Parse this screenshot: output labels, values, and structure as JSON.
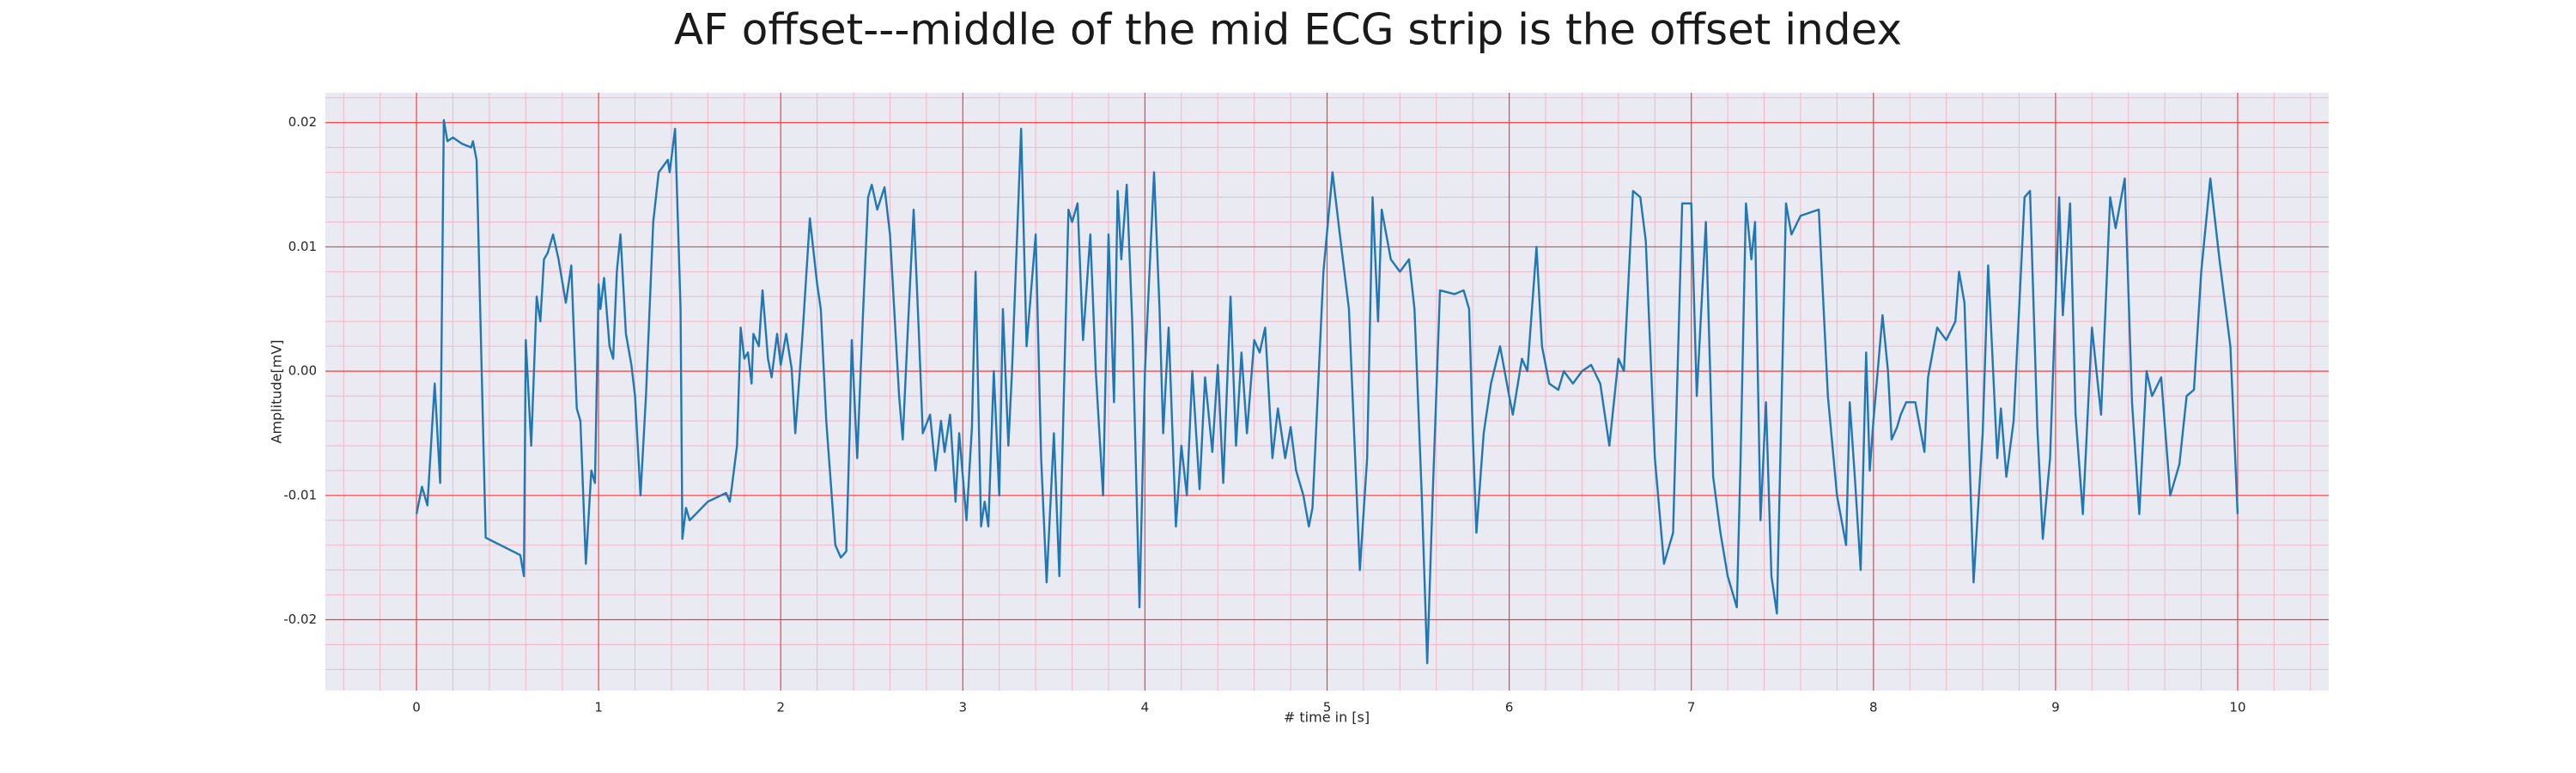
{
  "chart_data": {
    "type": "line",
    "title": "AF offset---middle of the mid ECG strip is the offset index",
    "xlabel": "# time in [s]",
    "ylabel": "Amplitude[mV]",
    "xlim": [
      -0.5,
      10.5
    ],
    "xticks": [
      0,
      1,
      2,
      3,
      4,
      5,
      6,
      7,
      8,
      9,
      10
    ],
    "ylim": [
      -0.0257,
      0.0224
    ],
    "yticks": [
      -0.02,
      -0.01,
      {
        "value": 0,
        "label": "0.00"
      },
      0.01,
      0.02
    ],
    "grid": true,
    "minor_grid": true,
    "grid_color": "#ff3b3b",
    "minor_grid_color": "#f4b6c6",
    "background": "#eaeaf2",
    "color": "#1f77b4",
    "x": [
      0,
      0.03,
      0.06,
      0.1,
      0.13,
      0.15,
      0.17,
      0.2,
      0.25,
      0.3,
      0.31,
      0.33,
      0.38,
      0.57,
      0.59,
      0.6,
      0.63,
      0.66,
      0.68,
      0.7,
      0.72,
      0.75,
      0.78,
      0.82,
      0.85,
      0.88,
      0.9,
      0.93,
      0.96,
      0.98,
      1.0,
      1.01,
      1.03,
      1.06,
      1.08,
      1.1,
      1.12,
      1.15,
      1.18,
      1.2,
      1.23,
      1.26,
      1.3,
      1.33,
      1.38,
      1.39,
      1.42,
      1.45,
      1.46,
      1.48,
      1.5,
      1.6,
      1.7,
      1.72,
      1.73,
      1.76,
      1.78,
      1.8,
      1.82,
      1.84,
      1.85,
      1.88,
      1.9,
      1.93,
      1.95,
      1.98,
      2.0,
      2.03,
      2.06,
      2.08,
      2.12,
      2.16,
      2.2,
      2.22,
      2.25,
      2.3,
      2.33,
      2.36,
      2.38,
      2.39,
      2.42,
      2.45,
      2.48,
      2.5,
      2.53,
      2.57,
      2.6,
      2.65,
      2.67,
      2.7,
      2.73,
      2.76,
      2.78,
      2.82,
      2.85,
      2.88,
      2.9,
      2.93,
      2.96,
      2.98,
      3.02,
      3.05,
      3.07,
      3.1,
      3.12,
      3.14,
      3.17,
      3.2,
      3.22,
      3.25,
      3.27,
      3.32,
      3.35,
      3.4,
      3.43,
      3.46,
      3.5,
      3.53,
      3.58,
      3.6,
      3.63,
      3.66,
      3.7,
      3.73,
      3.77,
      3.8,
      3.83,
      3.85,
      3.87,
      3.9,
      3.93,
      3.97,
      4.0,
      4.05,
      4.08,
      4.1,
      4.13,
      4.17,
      4.2,
      4.23,
      4.26,
      4.3,
      4.33,
      4.37,
      4.4,
      4.43,
      4.47,
      4.5,
      4.53,
      4.56,
      4.6,
      4.63,
      4.66,
      4.7,
      4.73,
      4.77,
      4.8,
      4.83,
      4.87,
      4.9,
      4.92,
      4.98,
      5.03,
      5.07,
      5.12,
      5.18,
      5.22,
      5.25,
      5.28,
      5.3,
      5.35,
      5.4,
      5.45,
      5.48,
      5.52,
      5.55,
      5.58,
      5.62,
      5.7,
      5.75,
      5.78,
      5.8,
      5.82,
      5.86,
      5.9,
      5.95,
      6.0,
      6.02,
      6.07,
      6.1,
      6.15,
      6.18,
      6.22,
      6.27,
      6.3,
      6.35,
      6.4,
      6.45,
      6.5,
      6.55,
      6.6,
      6.63,
      6.68,
      6.72,
      6.75,
      6.8,
      6.85,
      6.9,
      6.95,
      7.0,
      7.03,
      7.08,
      7.12,
      7.16,
      7.2,
      7.25,
      7.27,
      7.3,
      7.33,
      7.35,
      7.38,
      7.41,
      7.44,
      7.47,
      7.52,
      7.55,
      7.6,
      7.7,
      7.75,
      7.8,
      7.85,
      7.87,
      7.9,
      7.93,
      7.96,
      7.98,
      8.0,
      8.05,
      8.08,
      8.1,
      8.13,
      8.15,
      8.18,
      8.23,
      8.28,
      8.3,
      8.35,
      8.4,
      8.45,
      8.47,
      8.5,
      8.55,
      8.6,
      8.63,
      8.68,
      8.7,
      8.73,
      8.77,
      8.83,
      8.86,
      8.9,
      8.93,
      8.97,
      9.02,
      9.04,
      9.08,
      9.11,
      9.15,
      9.2,
      9.25,
      9.3,
      9.33,
      9.38,
      9.42,
      9.46,
      9.5,
      9.53,
      9.58,
      9.63,
      9.68,
      9.72,
      9.76,
      9.8,
      9.85,
      9.9,
      9.96,
      10.0
    ],
    "values": [
      -0.0115,
      -0.0093,
      -0.0108,
      -0.001,
      -0.009,
      0.0202,
      0.0185,
      0.0188,
      0.0183,
      0.018,
      0.0185,
      0.017,
      -0.0134,
      -0.0148,
      -0.0165,
      0.0025,
      -0.006,
      0.006,
      0.004,
      0.009,
      0.0095,
      0.011,
      0.009,
      0.0055,
      0.0085,
      -0.003,
      -0.004,
      -0.0155,
      -0.008,
      -0.009,
      0.007,
      0.005,
      0.0075,
      0.002,
      0.001,
      0.008,
      0.011,
      0.003,
      0.0005,
      -0.002,
      -0.01,
      -0.002,
      0.012,
      0.016,
      0.017,
      0.016,
      0.0195,
      0.005,
      -0.0135,
      -0.011,
      -0.012,
      -0.0105,
      -0.0098,
      -0.0105,
      -0.0095,
      -0.006,
      0.0035,
      0.001,
      0.0015,
      -0.001,
      0.003,
      0.002,
      0.0065,
      0.001,
      -0.0005,
      0.003,
      0.0005,
      0.003,
      0.0002,
      -0.005,
      0.003,
      0.0123,
      0.007,
      0.005,
      -0.004,
      -0.014,
      -0.015,
      -0.0145,
      -0.004,
      0.0025,
      -0.007,
      0.004,
      0.014,
      0.015,
      0.013,
      0.0148,
      0.011,
      -0.002,
      -0.0055,
      0.004,
      0.013,
      0.0025,
      -0.005,
      -0.0035,
      -0.008,
      -0.004,
      -0.0065,
      -0.0035,
      -0.0105,
      -0.005,
      -0.012,
      -0.0045,
      0.008,
      -0.0125,
      -0.0105,
      -0.0125,
      0.0,
      -0.01,
      0.005,
      -0.006,
      0.0,
      0.0195,
      0.002,
      0.011,
      -0.007,
      -0.017,
      -0.005,
      -0.0165,
      0.013,
      0.012,
      0.0135,
      0.0025,
      0.011,
      0.0,
      -0.01,
      0.011,
      -0.0025,
      0.0145,
      0.009,
      0.015,
      0.004,
      -0.019,
      0.0,
      0.016,
      0.005,
      -0.005,
      0.0035,
      -0.0125,
      -0.006,
      -0.01,
      0.0,
      -0.0095,
      -0.0005,
      -0.0065,
      0.0005,
      -0.009,
      0.006,
      -0.006,
      0.0015,
      -0.005,
      0.0025,
      0.0015,
      0.0035,
      -0.007,
      -0.003,
      -0.007,
      -0.0045,
      -0.008,
      -0.01,
      -0.0125,
      -0.011,
      0.008,
      0.016,
      0.011,
      0.005,
      -0.016,
      -0.007,
      0.014,
      0.004,
      0.013,
      0.009,
      0.008,
      0.009,
      0.005,
      -0.01,
      -0.0235,
      -0.01,
      0.0065,
      0.0062,
      0.0065,
      0.005,
      -0.005,
      -0.013,
      -0.005,
      -0.001,
      0.002,
      -0.002,
      -0.0035,
      0.001,
      0.0,
      0.01,
      0.002,
      -0.001,
      -0.0015,
      0.0,
      -0.001,
      0.0,
      0.0005,
      -0.001,
      -0.006,
      0.001,
      0.0,
      0.0145,
      0.014,
      0.0105,
      -0.007,
      -0.0155,
      -0.013,
      0.0135,
      0.0135,
      -0.002,
      0.012,
      -0.0085,
      -0.013,
      -0.0165,
      -0.019,
      -0.0075,
      0.0135,
      0.009,
      0.012,
      -0.012,
      -0.0025,
      -0.0165,
      -0.0195,
      0.0135,
      0.011,
      0.0125,
      0.013,
      -0.002,
      -0.01,
      -0.014,
      -0.0025,
      -0.009,
      -0.016,
      0.0015,
      -0.008,
      -0.004,
      0.0045,
      0.0,
      -0.0055,
      -0.0045,
      -0.0035,
      -0.0025,
      -0.0025,
      -0.0065,
      -0.0005,
      0.0035,
      0.0025,
      0.004,
      0.008,
      0.0055,
      -0.017,
      -0.005,
      0.0085,
      -0.007,
      -0.003,
      -0.0085,
      -0.004,
      0.014,
      0.0145,
      -0.0045,
      -0.0135,
      -0.007,
      0.014,
      0.0045,
      0.0135,
      -0.0035,
      -0.0115,
      0.0035,
      -0.0035,
      0.014,
      0.0115,
      0.0155,
      -0.0025,
      -0.0115,
      0.0,
      -0.002,
      -0.0005,
      -0.01,
      -0.0075,
      -0.002,
      -0.0015,
      0.008,
      0.0155,
      0.009,
      0.002,
      -0.0115
    ]
  }
}
